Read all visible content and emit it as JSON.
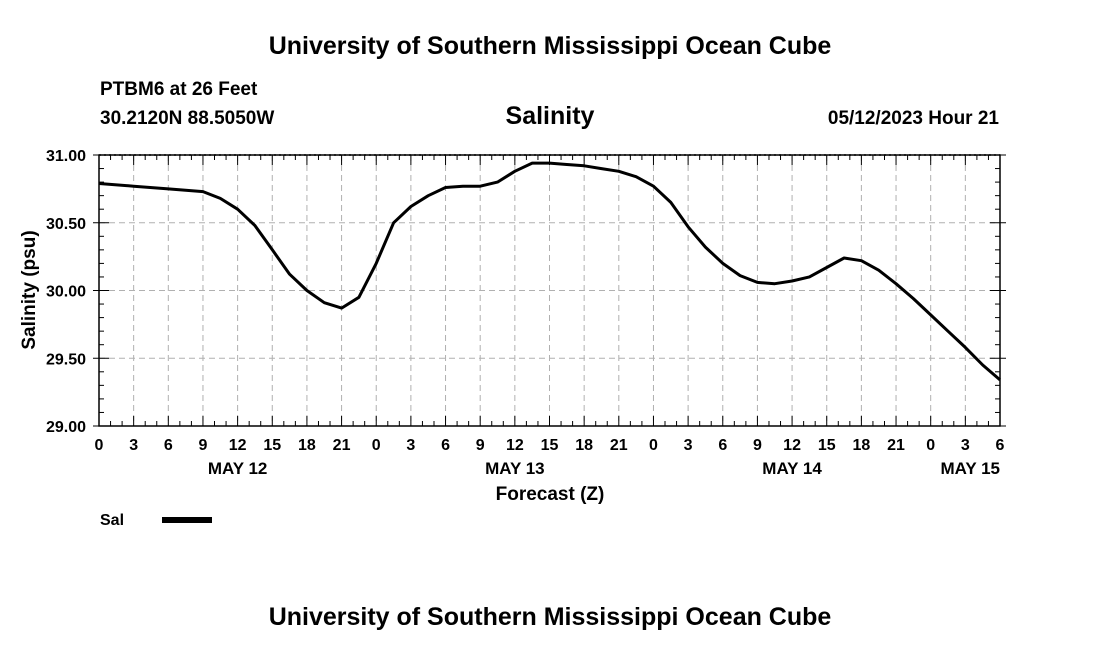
{
  "header": {
    "title": "University of Southern Mississippi Ocean Cube",
    "station": "PTBM6 at 26 Feet",
    "coords": "30.2120N  88.5050W",
    "datetime": "05/12/2023 Hour 21",
    "footer_title": "University of Southern Mississippi Ocean Cube"
  },
  "chart_data": {
    "type": "line",
    "title": "Salinity",
    "ylabel": "Salinity (psu)",
    "xlabel": "Forecast (Z)",
    "ylim": [
      29.0,
      31.0
    ],
    "xlim_hours": [
      0,
      78
    ],
    "yticks": [
      29.0,
      29.5,
      30.0,
      30.5,
      31.0
    ],
    "ytick_labels": [
      "29.00",
      "29.50",
      "30.00",
      "30.50",
      "31.00"
    ],
    "xtick_hours": [
      0,
      3,
      6,
      9,
      12,
      15,
      18,
      21,
      24,
      27,
      30,
      33,
      36,
      39,
      42,
      45,
      48,
      51,
      54,
      57,
      60,
      63,
      66,
      69,
      72,
      75,
      78
    ],
    "xtick_labels": [
      "0",
      "3",
      "6",
      "9",
      "12",
      "15",
      "18",
      "21",
      "0",
      "3",
      "6",
      "9",
      "12",
      "15",
      "18",
      "21",
      "0",
      "3",
      "6",
      "9",
      "12",
      "15",
      "18",
      "21",
      "0",
      "3",
      "6"
    ],
    "date_labels": [
      {
        "text": "MAY 12",
        "hour": 12
      },
      {
        "text": "MAY 13",
        "hour": 36
      },
      {
        "text": "MAY 14",
        "hour": 60
      },
      {
        "text": "MAY 15",
        "hour": 78
      }
    ],
    "grid": true,
    "color": "#000000",
    "series": [
      {
        "name": "Sal",
        "x": [
          0,
          3,
          6,
          9,
          10.5,
          12,
          13.5,
          15,
          16.5,
          18,
          19.5,
          21,
          22.5,
          24,
          25.5,
          27,
          28.5,
          30,
          31.5,
          33,
          34.5,
          36,
          37.5,
          39,
          40.5,
          42,
          43.5,
          45,
          46.5,
          48,
          49.5,
          51,
          52.5,
          54,
          55.5,
          57,
          58.5,
          60,
          61.5,
          63,
          64.5,
          66,
          67.5,
          69,
          70.5,
          72,
          73.5,
          75,
          76.5,
          78
        ],
        "values": [
          30.79,
          30.77,
          30.75,
          30.73,
          30.68,
          30.6,
          30.48,
          30.3,
          30.12,
          30.0,
          29.91,
          29.87,
          29.95,
          30.2,
          30.5,
          30.62,
          30.7,
          30.76,
          30.77,
          30.77,
          30.8,
          30.88,
          30.94,
          30.94,
          30.93,
          30.92,
          30.9,
          30.88,
          30.84,
          30.77,
          30.65,
          30.47,
          30.32,
          30.2,
          30.11,
          30.06,
          30.05,
          30.07,
          30.1,
          30.17,
          30.24,
          30.22,
          30.15,
          30.05,
          29.94,
          29.82,
          29.7,
          29.58,
          29.45,
          29.34
        ]
      }
    ]
  },
  "legend": {
    "label": "Sal"
  }
}
